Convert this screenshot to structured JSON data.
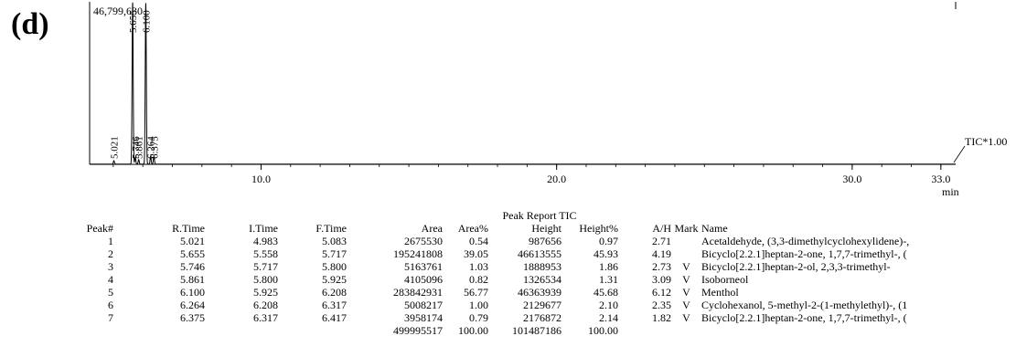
{
  "panel_label": "(d)",
  "chart_data": {
    "type": "line",
    "y_max_label": "46,799,630",
    "x_unit": "min",
    "x_ticks": [
      "10.0",
      "20.0",
      "30.0",
      "33.0"
    ],
    "x_tick_values": [
      10.0,
      20.0,
      30.0,
      33.0
    ],
    "xlim": [
      4.2,
      33.5
    ],
    "ylim": [
      0,
      46799630
    ],
    "trace_label": "TIC*1.00",
    "peaks": [
      {
        "rt": 5.021,
        "label": "5.021",
        "height": 987656
      },
      {
        "rt": 5.655,
        "label": "5.655",
        "height": 46613555
      },
      {
        "rt": 5.746,
        "label": "5.746",
        "height": 1888953
      },
      {
        "rt": 5.861,
        "label": "5.861",
        "height": 1326534
      },
      {
        "rt": 6.1,
        "label": "6.100",
        "height": 46363939
      },
      {
        "rt": 6.264,
        "label": "6.264",
        "height": 2129677
      },
      {
        "rt": 6.375,
        "label": "6.375",
        "height": 2176872
      }
    ]
  },
  "report": {
    "title": "Peak Report TIC",
    "headers": {
      "peak": "Peak#",
      "rtime": "R.Time",
      "itime": "I.Time",
      "ftime": "F.Time",
      "area": "Area",
      "area_pct": "Area%",
      "height": "Height",
      "height_pct": "Height%",
      "ah": "A/H",
      "mark": "Mark",
      "name": "Name"
    },
    "rows": [
      {
        "peak": "1",
        "rtime": "5.021",
        "itime": "4.983",
        "ftime": "5.083",
        "area": "2675530",
        "area_pct": "0.54",
        "height": "987656",
        "height_pct": "0.97",
        "ah": "2.71",
        "mark": "",
        "name": "Acetaldehyde, (3,3-dimethylcyclohexylidene)-,"
      },
      {
        "peak": "2",
        "rtime": "5.655",
        "itime": "5.558",
        "ftime": "5.717",
        "area": "195241808",
        "area_pct": "39.05",
        "height": "46613555",
        "height_pct": "45.93",
        "ah": "4.19",
        "mark": "",
        "name": "Bicyclo[2.2.1]heptan-2-one, 1,7,7-trimethyl-, ("
      },
      {
        "peak": "3",
        "rtime": "5.746",
        "itime": "5.717",
        "ftime": "5.800",
        "area": "5163761",
        "area_pct": "1.03",
        "height": "1888953",
        "height_pct": "1.86",
        "ah": "2.73",
        "mark": "V",
        "name": "Bicyclo[2.2.1]heptan-2-ol, 2,3,3-trimethyl-"
      },
      {
        "peak": "4",
        "rtime": "5.861",
        "itime": "5.800",
        "ftime": "5.925",
        "area": "4105096",
        "area_pct": "0.82",
        "height": "1326534",
        "height_pct": "1.31",
        "ah": "3.09",
        "mark": "V",
        "name": "Isoborneol"
      },
      {
        "peak": "5",
        "rtime": "6.100",
        "itime": "5.925",
        "ftime": "6.208",
        "area": "283842931",
        "area_pct": "56.77",
        "height": "46363939",
        "height_pct": "45.68",
        "ah": "6.12",
        "mark": "V",
        "name": "Menthol"
      },
      {
        "peak": "6",
        "rtime": "6.264",
        "itime": "6.208",
        "ftime": "6.317",
        "area": "5008217",
        "area_pct": "1.00",
        "height": "2129677",
        "height_pct": "2.10",
        "ah": "2.35",
        "mark": "V",
        "name": "Cyclohexanol, 5-methyl-2-(1-methylethyl)-, (1"
      },
      {
        "peak": "7",
        "rtime": "6.375",
        "itime": "6.317",
        "ftime": "6.417",
        "area": "3958174",
        "area_pct": "0.79",
        "height": "2176872",
        "height_pct": "2.14",
        "ah": "1.82",
        "mark": "V",
        "name": "Bicyclo[2.2.1]heptan-2-one, 1,7,7-trimethyl-, ("
      }
    ],
    "totals": {
      "area": "499995517",
      "area_pct": "100.00",
      "height": "101487186",
      "height_pct": "100.00"
    }
  }
}
